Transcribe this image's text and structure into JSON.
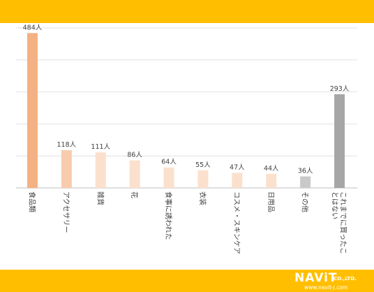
{
  "chart_data": {
    "type": "bar",
    "title": "",
    "xlabel": "",
    "ylabel": "",
    "ylim": [
      0,
      500
    ],
    "grid": true,
    "legend": "none",
    "categories": [
      "食品類",
      "アクセサリー",
      "雑貨",
      "花",
      "食事に誘われた",
      "衣装",
      "コスメ・スキンケア",
      "日用品",
      "その他",
      "これまでに買ったことはない"
    ],
    "values": [
      484,
      118,
      111,
      86,
      64,
      55,
      47,
      44,
      36,
      293
    ],
    "value_labels": [
      "484人",
      "118人",
      "111人",
      "86人",
      "64人",
      "55人",
      "47人",
      "44人",
      "36人",
      "293人"
    ],
    "bar_colors": [
      "#f4b183",
      "#f8cbad",
      "#fbe0cd",
      "#fbe0cd",
      "#fbe0cd",
      "#fbe0cd",
      "#fbe0cd",
      "#fbe0cd",
      "#c9c9c9",
      "#a6a6a6"
    ]
  },
  "colors": {
    "band": "#ffbf00",
    "grid": "#d9d9d9",
    "axis": "#bfbfbf",
    "text": "#404040"
  },
  "footer": {
    "brand_name": "NAViT",
    "company_suffix": "CO.,LTD.",
    "url": "www.navit-j.com"
  }
}
